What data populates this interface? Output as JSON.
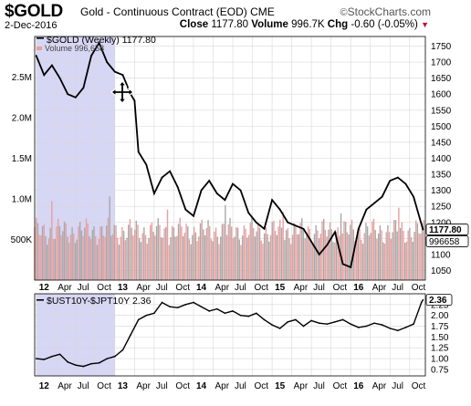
{
  "header": {
    "symbol": "$GOLD",
    "description": "Gold - Continuous Contract (EOD)",
    "exchange": "CME",
    "brand": "StockCharts.com",
    "date": "2-Dec-2016",
    "close_label": "Close",
    "close_value": "1177.80",
    "volume_label": "Volume",
    "volume_value": "996.7K",
    "chg_label": "Chg",
    "chg_value": "-0.60 (-0.05%)"
  },
  "chart_data": [
    {
      "type": "line",
      "legend": "$GOLD (Weekly) 1177.80",
      "volume_legend": "Volume 996,658",
      "ylim": [
        1020,
        1780
      ],
      "yticks": [
        1050,
        1100,
        1150,
        1200,
        1250,
        1300,
        1350,
        1400,
        1450,
        1500,
        1550,
        1600,
        1650,
        1700,
        1750
      ],
      "last_value": 1177.8,
      "last_value_label": "1177.80",
      "volume_last_label": "996658",
      "x": [
        2012.0,
        2012.1,
        2012.2,
        2012.3,
        2012.4,
        2012.5,
        2012.6,
        2012.7,
        2012.8,
        2012.9,
        2013.0,
        2013.1,
        2013.2,
        2013.25,
        2013.3,
        2013.4,
        2013.5,
        2013.6,
        2013.7,
        2013.8,
        2013.9,
        2014.0,
        2014.1,
        2014.2,
        2014.3,
        2014.4,
        2014.5,
        2014.6,
        2014.7,
        2014.8,
        2014.9,
        2015.0,
        2015.1,
        2015.2,
        2015.3,
        2015.4,
        2015.5,
        2015.6,
        2015.7,
        2015.8,
        2015.9,
        2016.0,
        2016.1,
        2016.2,
        2016.3,
        2016.4,
        2016.5,
        2016.6,
        2016.7,
        2016.8,
        2016.92
      ],
      "values": [
        1720,
        1660,
        1690,
        1650,
        1600,
        1590,
        1620,
        1720,
        1760,
        1700,
        1670,
        1660,
        1600,
        1580,
        1420,
        1380,
        1290,
        1340,
        1360,
        1310,
        1240,
        1220,
        1300,
        1330,
        1290,
        1270,
        1320,
        1300,
        1230,
        1200,
        1180,
        1270,
        1240,
        1200,
        1190,
        1180,
        1140,
        1100,
        1130,
        1170,
        1070,
        1060,
        1180,
        1240,
        1260,
        1280,
        1330,
        1340,
        1320,
        1280,
        1177.8
      ],
      "volume_ylim": [
        0,
        3000000
      ],
      "volume_yticks": [
        500000,
        1000000,
        1500000,
        2000000,
        2500000
      ],
      "volume_yticklabels": [
        "500K",
        "1.0M",
        "1.5M",
        "2.0M",
        "2.5M"
      ],
      "highlight_range": [
        2012.0,
        2013.0
      ]
    },
    {
      "type": "line",
      "legend": "$UST10Y-$JPT10Y 2.36",
      "ylim": [
        0.6,
        2.5
      ],
      "yticks": [
        0.75,
        1.0,
        1.25,
        1.5,
        1.75,
        2.0,
        2.25
      ],
      "yticklabels": [
        "0.75",
        "1.00",
        "1.25",
        "1.50",
        "1.75",
        "2.00",
        "2.25"
      ],
      "last_value": 2.36,
      "last_value_label": "2.36",
      "x": [
        2012.0,
        2012.1,
        2012.2,
        2012.3,
        2012.4,
        2012.5,
        2012.6,
        2012.7,
        2012.8,
        2012.9,
        2013.0,
        2013.1,
        2013.2,
        2013.3,
        2013.4,
        2013.5,
        2013.6,
        2013.7,
        2013.8,
        2013.9,
        2014.0,
        2014.1,
        2014.2,
        2014.3,
        2014.4,
        2014.5,
        2014.6,
        2014.7,
        2014.8,
        2014.9,
        2015.0,
        2015.1,
        2015.2,
        2015.3,
        2015.4,
        2015.5,
        2015.6,
        2015.7,
        2015.8,
        2015.9,
        2016.0,
        2016.1,
        2016.2,
        2016.3,
        2016.4,
        2016.5,
        2016.6,
        2016.7,
        2016.8,
        2016.9,
        2016.92
      ],
      "values": [
        1.0,
        0.98,
        1.05,
        1.1,
        0.92,
        0.85,
        0.82,
        0.88,
        0.9,
        1.0,
        1.05,
        1.2,
        1.55,
        1.9,
        2.0,
        2.05,
        2.3,
        2.2,
        2.18,
        2.25,
        2.3,
        2.2,
        2.1,
        2.15,
        2.05,
        2.1,
        2.0,
        1.98,
        2.05,
        1.9,
        1.78,
        1.7,
        1.85,
        1.9,
        1.75,
        1.88,
        1.82,
        1.8,
        1.85,
        1.9,
        1.8,
        1.72,
        1.75,
        1.82,
        1.78,
        1.7,
        1.65,
        1.72,
        1.8,
        2.3,
        2.36
      ]
    }
  ],
  "x_axis": {
    "labels": [
      {
        "x": 2012.0,
        "text": "12",
        "year": true
      },
      {
        "x": 2012.25,
        "text": "Apr",
        "year": false
      },
      {
        "x": 2012.5,
        "text": "Jul",
        "year": false
      },
      {
        "x": 2012.75,
        "text": "Oct",
        "year": false
      },
      {
        "x": 2013.0,
        "text": "13",
        "year": true
      },
      {
        "x": 2013.25,
        "text": "Apr",
        "year": false
      },
      {
        "x": 2013.5,
        "text": "Jul",
        "year": false
      },
      {
        "x": 2013.75,
        "text": "Oct",
        "year": false
      },
      {
        "x": 2014.0,
        "text": "14",
        "year": true
      },
      {
        "x": 2014.25,
        "text": "Apr",
        "year": false
      },
      {
        "x": 2014.5,
        "text": "Jul",
        "year": false
      },
      {
        "x": 2014.75,
        "text": "Oct",
        "year": false
      },
      {
        "x": 2015.0,
        "text": "15",
        "year": true
      },
      {
        "x": 2015.25,
        "text": "Apr",
        "year": false
      },
      {
        "x": 2015.5,
        "text": "Jul",
        "year": false
      },
      {
        "x": 2015.75,
        "text": "Oct",
        "year": false
      },
      {
        "x": 2016.0,
        "text": "16",
        "year": true
      },
      {
        "x": 2016.25,
        "text": "Apr",
        "year": false
      },
      {
        "x": 2016.5,
        "text": "Jul",
        "year": false
      },
      {
        "x": 2016.75,
        "text": "Oct",
        "year": false
      }
    ],
    "xlim": [
      2011.98,
      2016.95
    ]
  },
  "colors": {
    "highlight": "#d6d6f5",
    "grid": "#d8d8d8",
    "line": "#000000",
    "volume_up": "#e8a0a0",
    "volume_down": "#a8a8a8"
  }
}
